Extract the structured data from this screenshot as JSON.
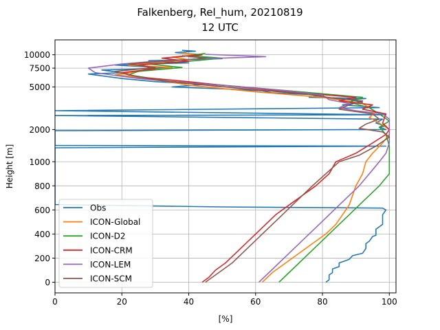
{
  "chart_data": {
    "type": "line",
    "title": "Falkenberg, Rel_hum, 20210819",
    "subtitle": "12 UTC",
    "xlabel": "[%]",
    "ylabel": "Height [m]",
    "xlim": [
      0,
      102
    ],
    "x_ticks": [
      0,
      20,
      40,
      60,
      80,
      100
    ],
    "y_ticks": [
      {
        "label": "0",
        "value": 0
      },
      {
        "label": "200",
        "value": 200
      },
      {
        "label": "400",
        "value": 400
      },
      {
        "label": "600",
        "value": 600
      },
      {
        "label": "800",
        "value": 800
      },
      {
        "label": "1000",
        "value": 1000
      },
      {
        "label": "2000",
        "value": 2000
      },
      {
        "label": "5000",
        "value": 5000
      },
      {
        "label": "7500",
        "value": 7500
      },
      {
        "label": "10000",
        "value": 10000
      }
    ],
    "grid": true,
    "legend_position": "lower-left",
    "series": [
      {
        "name": "Obs",
        "color": "#1f77b4",
        "points": [
          [
            81,
            0
          ],
          [
            82,
            20
          ],
          [
            82,
            60
          ],
          [
            83,
            80
          ],
          [
            83,
            110
          ],
          [
            85,
            130
          ],
          [
            85,
            160
          ],
          [
            87,
            180
          ],
          [
            88,
            190
          ],
          [
            89,
            220
          ],
          [
            92,
            240
          ],
          [
            93,
            280
          ],
          [
            93,
            320
          ],
          [
            94,
            340
          ],
          [
            95,
            380
          ],
          [
            96,
            390
          ],
          [
            96,
            440
          ],
          [
            97,
            460
          ],
          [
            98,
            480
          ],
          [
            98,
            560
          ],
          [
            99,
            600
          ],
          [
            98,
            615
          ],
          [
            50,
            625
          ],
          [
            0,
            645
          ],
          [
            0,
            1350
          ],
          [
            99,
            1400
          ],
          [
            0,
            1420
          ],
          [
            0,
            1950
          ],
          [
            99,
            2000
          ],
          [
            97,
            2100
          ],
          [
            99,
            2150
          ],
          [
            96,
            2300
          ],
          [
            98,
            2500
          ],
          [
            0,
            2700
          ],
          [
            99,
            2750
          ],
          [
            0,
            3000
          ],
          [
            97,
            3200
          ],
          [
            86,
            3400
          ],
          [
            92,
            3600
          ],
          [
            88,
            3800
          ],
          [
            93,
            3900
          ],
          [
            76,
            4000
          ],
          [
            80,
            4200
          ],
          [
            65,
            4400
          ],
          [
            62,
            4600
          ],
          [
            50,
            4800
          ],
          [
            35,
            5000
          ],
          [
            45,
            5300
          ],
          [
            30,
            5600
          ],
          [
            20,
            6000
          ],
          [
            10,
            6600
          ],
          [
            20,
            6800
          ],
          [
            14,
            7200
          ],
          [
            35,
            7500
          ],
          [
            18,
            8000
          ],
          [
            40,
            8400
          ],
          [
            28,
            8800
          ],
          [
            50,
            9200
          ],
          [
            40,
            9600
          ],
          [
            44,
            10000
          ],
          [
            36,
            10500
          ],
          [
            42,
            10800
          ],
          [
            38,
            11000
          ]
        ]
      },
      {
        "name": "ICON-Global",
        "color": "#ff7f0e",
        "points": [
          [
            62,
            0
          ],
          [
            65,
            80
          ],
          [
            69,
            160
          ],
          [
            73,
            240
          ],
          [
            77,
            320
          ],
          [
            81,
            400
          ],
          [
            84,
            480
          ],
          [
            86,
            560
          ],
          [
            88,
            640
          ],
          [
            89,
            720
          ],
          [
            90,
            800
          ],
          [
            92,
            900
          ],
          [
            93,
            1000
          ],
          [
            95,
            1200
          ],
          [
            98,
            1500
          ],
          [
            100,
            1800
          ],
          [
            100,
            2000
          ],
          [
            97,
            2300
          ],
          [
            94,
            2600
          ],
          [
            96,
            2900
          ],
          [
            94,
            3200
          ],
          [
            92,
            3500
          ],
          [
            80,
            4000
          ],
          [
            60,
            4500
          ],
          [
            40,
            5200
          ],
          [
            28,
            6000
          ],
          [
            18,
            6500
          ],
          [
            25,
            7000
          ],
          [
            35,
            7600
          ],
          [
            22,
            8000
          ],
          [
            30,
            8500
          ],
          [
            40,
            9000
          ],
          [
            35,
            9500
          ],
          [
            42,
            10000
          ],
          [
            38,
            10500
          ]
        ]
      },
      {
        "name": "ICON-D2",
        "color": "#2ca02c",
        "points": [
          [
            67,
            0
          ],
          [
            70,
            80
          ],
          [
            73,
            160
          ],
          [
            76,
            240
          ],
          [
            79,
            320
          ],
          [
            82,
            400
          ],
          [
            85,
            480
          ],
          [
            88,
            560
          ],
          [
            91,
            640
          ],
          [
            94,
            720
          ],
          [
            97,
            800
          ],
          [
            100,
            900
          ],
          [
            100,
            1100
          ],
          [
            100,
            1400
          ],
          [
            99,
            1800
          ],
          [
            97,
            2100
          ],
          [
            100,
            2400
          ],
          [
            97,
            2800
          ],
          [
            94,
            3200
          ],
          [
            88,
            3600
          ],
          [
            92,
            4000
          ],
          [
            70,
            4600
          ],
          [
            50,
            5200
          ],
          [
            35,
            5600
          ],
          [
            22,
            6500
          ],
          [
            25,
            7000
          ],
          [
            38,
            7600
          ],
          [
            28,
            8200
          ],
          [
            42,
            8800
          ],
          [
            50,
            9300
          ],
          [
            40,
            9800
          ],
          [
            45,
            10300
          ]
        ]
      },
      {
        "name": "ICON-CRM",
        "color": "#d62728",
        "points": [
          [
            44,
            0
          ],
          [
            46,
            40
          ],
          [
            48,
            100
          ],
          [
            51,
            160
          ],
          [
            54,
            240
          ],
          [
            57,
            320
          ],
          [
            60,
            400
          ],
          [
            63,
            480
          ],
          [
            66,
            560
          ],
          [
            70,
            640
          ],
          [
            74,
            720
          ],
          [
            78,
            800
          ],
          [
            82,
            900
          ],
          [
            84,
            1000
          ],
          [
            90,
            1200
          ],
          [
            95,
            1500
          ],
          [
            99,
            1800
          ],
          [
            100,
            2000
          ],
          [
            98,
            2300
          ],
          [
            99,
            2800
          ],
          [
            92,
            3100
          ],
          [
            95,
            3400
          ],
          [
            85,
            3700
          ],
          [
            90,
            4000
          ],
          [
            70,
            4500
          ],
          [
            55,
            5000
          ],
          [
            40,
            5600
          ],
          [
            25,
            6200
          ],
          [
            20,
            6800
          ],
          [
            30,
            7400
          ],
          [
            25,
            8000
          ],
          [
            40,
            8700
          ],
          [
            32,
            9300
          ],
          [
            44,
            10000
          ]
        ]
      },
      {
        "name": "ICON-LEM",
        "color": "#9467bd",
        "points": [
          [
            61,
            0
          ],
          [
            64,
            80
          ],
          [
            67,
            160
          ],
          [
            70,
            240
          ],
          [
            73,
            320
          ],
          [
            76,
            400
          ],
          [
            79,
            480
          ],
          [
            82,
            560
          ],
          [
            85,
            640
          ],
          [
            88,
            720
          ],
          [
            91,
            800
          ],
          [
            94,
            900
          ],
          [
            97,
            1000
          ],
          [
            99,
            1200
          ],
          [
            100,
            1500
          ],
          [
            100,
            1800
          ],
          [
            100,
            2100
          ],
          [
            100,
            2500
          ],
          [
            98,
            2800
          ],
          [
            90,
            3000
          ],
          [
            85,
            3200
          ],
          [
            88,
            3500
          ],
          [
            82,
            3800
          ],
          [
            80,
            4200
          ],
          [
            72,
            4500
          ],
          [
            60,
            4900
          ],
          [
            42,
            5400
          ],
          [
            25,
            6000
          ],
          [
            12,
            6800
          ],
          [
            10,
            7500
          ],
          [
            20,
            8200
          ],
          [
            30,
            8700
          ],
          [
            45,
            9200
          ],
          [
            63,
            9600
          ],
          [
            45,
            10100
          ]
        ]
      },
      {
        "name": "ICON-SCM",
        "color": "#8c564b",
        "points": [
          [
            45,
            0
          ],
          [
            47,
            40
          ],
          [
            50,
            100
          ],
          [
            53,
            160
          ],
          [
            56,
            240
          ],
          [
            59,
            320
          ],
          [
            62,
            400
          ],
          [
            65,
            480
          ],
          [
            68,
            560
          ],
          [
            71,
            640
          ],
          [
            74,
            720
          ],
          [
            77,
            800
          ],
          [
            81,
            900
          ],
          [
            85,
            1000
          ],
          [
            91,
            1150
          ],
          [
            96,
            1400
          ],
          [
            100,
            1700
          ],
          [
            98,
            1900
          ],
          [
            91,
            2050
          ],
          [
            93,
            2250
          ],
          [
            97,
            2500
          ],
          [
            95,
            2800
          ],
          [
            85,
            3100
          ],
          [
            88,
            3400
          ],
          [
            92,
            3700
          ],
          [
            84,
            3900
          ],
          [
            75,
            4300
          ],
          [
            60,
            4700
          ],
          [
            45,
            5200
          ],
          [
            30,
            5800
          ],
          [
            22,
            6500
          ],
          [
            18,
            7000
          ],
          [
            30,
            7600
          ],
          [
            22,
            8200
          ],
          [
            35,
            8800
          ],
          [
            45,
            9300
          ],
          [
            38,
            9800
          ]
        ]
      }
    ]
  }
}
